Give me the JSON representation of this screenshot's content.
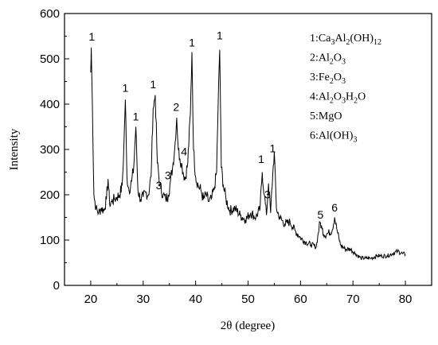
{
  "chart_data": {
    "type": "line",
    "title": "",
    "xlabel": "2θ  (degree)",
    "ylabel": "Intensity",
    "xlim": [
      15,
      85
    ],
    "ylim": [
      0,
      600
    ],
    "xticks": [
      "20",
      "30",
      "40",
      "50",
      "60",
      "70",
      "80"
    ],
    "yticks": [
      "0",
      "100",
      "200",
      "300",
      "400",
      "500",
      "600"
    ],
    "grid": false,
    "legend_position": "top-right",
    "legend": [
      {
        "num": "1:",
        "text": "Ca",
        "parts": [
          [
            "Ca",
            ""
          ],
          [
            "3",
            "sub"
          ],
          [
            "Al",
            ""
          ],
          [
            "2",
            "sub"
          ],
          [
            "(OH)",
            ""
          ],
          [
            "12",
            "sub"
          ]
        ]
      },
      {
        "num": "2:",
        "parts": [
          [
            "Al",
            ""
          ],
          [
            "2",
            "sub"
          ],
          [
            "O",
            ""
          ],
          [
            "3",
            "sub"
          ]
        ]
      },
      {
        "num": "3:",
        "parts": [
          [
            "Fe",
            ""
          ],
          [
            "2",
            "sub"
          ],
          [
            "O",
            ""
          ],
          [
            "3",
            "sub"
          ]
        ]
      },
      {
        "num": "4:",
        "parts": [
          [
            "Al",
            ""
          ],
          [
            "2",
            "sub"
          ],
          [
            "O",
            ""
          ],
          [
            "3",
            "sub"
          ],
          [
            "H",
            ""
          ],
          [
            "2",
            "sub"
          ],
          [
            "O",
            ""
          ]
        ]
      },
      {
        "num": "5:",
        "parts": [
          [
            "MgO",
            ""
          ]
        ]
      },
      {
        "num": "6:",
        "parts": [
          [
            "Al(OH)",
            ""
          ],
          [
            "3",
            "sub"
          ]
        ]
      }
    ],
    "series": [
      {
        "color": "#000000",
        "x": [
          20.0,
          20.1,
          20.3,
          20.6,
          21.0,
          21.5,
          22.0,
          22.5,
          23.0,
          23.3,
          23.6,
          24.0,
          24.5,
          25.0,
          25.5,
          26.0,
          26.3,
          26.6,
          26.9,
          27.3,
          27.8,
          28.2,
          28.6,
          29.0,
          29.5,
          30.0,
          30.5,
          31.0,
          31.5,
          31.9,
          32.3,
          32.7,
          33.2,
          33.8,
          34.3,
          34.8,
          35.2,
          35.6,
          36.0,
          36.4,
          36.7,
          37.0,
          37.3,
          37.6,
          38.0,
          38.5,
          39.0,
          39.3,
          39.6,
          40.0,
          40.5,
          41.0,
          41.5,
          42.0,
          42.5,
          43.0,
          43.5,
          44.0,
          44.3,
          44.6,
          44.9,
          45.3,
          45.8,
          46.5,
          47.5,
          48.5,
          49.5,
          50.5,
          51.5,
          52.3,
          52.7,
          53.1,
          53.5,
          53.9,
          54.3,
          54.7,
          55.0,
          55.4,
          56.0,
          57.0,
          58.0,
          59.0,
          60.0,
          61.0,
          62.0,
          63.0,
          63.7,
          64.1,
          64.6,
          65.2,
          66.0,
          66.5,
          67.0,
          67.6,
          68.5,
          69.5,
          70.5,
          71.5,
          72.5,
          73.5,
          74.5,
          75.5,
          76.5,
          77.5,
          78.5,
          79.5,
          80.0
        ],
        "y": [
          470,
          525,
          410,
          200,
          170,
          160,
          170,
          165,
          190,
          235,
          180,
          185,
          190,
          195,
          200,
          220,
          300,
          410,
          240,
          210,
          230,
          260,
          350,
          210,
          190,
          195,
          205,
          200,
          240,
          390,
          420,
          270,
          220,
          200,
          190,
          200,
          230,
          260,
          300,
          370,
          300,
          280,
          270,
          250,
          235,
          270,
          380,
          515,
          300,
          240,
          220,
          210,
          190,
          200,
          185,
          190,
          210,
          250,
          405,
          520,
          260,
          220,
          190,
          165,
          170,
          155,
          145,
          160,
          150,
          170,
          250,
          200,
          155,
          225,
          160,
          245,
          295,
          170,
          150,
          135,
          140,
          120,
          105,
          95,
          90,
          85,
          140,
          125,
          110,
          115,
          120,
          150,
          120,
          90,
          80,
          80,
          70,
          60,
          60,
          60,
          65,
          65,
          65,
          70,
          75,
          70,
          68
        ]
      }
    ],
    "annotations": [
      {
        "text": "1",
        "x": 20.2,
        "y": 540
      },
      {
        "text": "1",
        "x": 26.6,
        "y": 427
      },
      {
        "text": "1",
        "x": 28.6,
        "y": 364
      },
      {
        "text": "1",
        "x": 31.9,
        "y": 435
      },
      {
        "text": "2",
        "x": 36.3,
        "y": 385
      },
      {
        "text": "1",
        "x": 39.3,
        "y": 527
      },
      {
        "text": "1",
        "x": 44.6,
        "y": 543
      },
      {
        "text": "3",
        "x": 33.0,
        "y": 212
      },
      {
        "text": "3",
        "x": 34.7,
        "y": 234
      },
      {
        "text": "4",
        "x": 37.8,
        "y": 287
      },
      {
        "text": "1",
        "x": 52.5,
        "y": 270
      },
      {
        "text": "3",
        "x": 53.7,
        "y": 192
      },
      {
        "text": "1",
        "x": 54.7,
        "y": 294
      },
      {
        "text": "5",
        "x": 63.8,
        "y": 147
      },
      {
        "text": "6",
        "x": 66.5,
        "y": 163
      }
    ]
  }
}
